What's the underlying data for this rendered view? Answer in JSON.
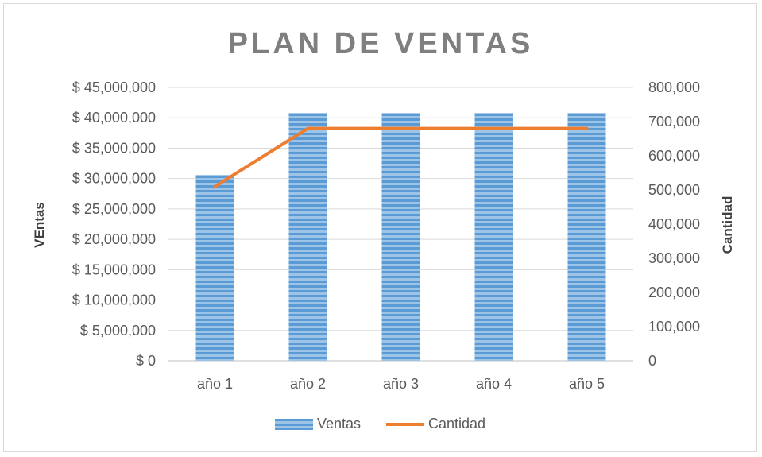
{
  "chart_data": {
    "type": "bar+line",
    "title": "PLAN DE VENTAS",
    "categories": [
      "año 1",
      "año 2",
      "año 3",
      "año 4",
      "año 5"
    ],
    "series": [
      {
        "name": "Ventas",
        "type": "bar",
        "axis": "left",
        "values": [
          30600000,
          40800000,
          40800000,
          40800000,
          40800000
        ],
        "color": "#5b9bd5"
      },
      {
        "name": "Cantidad",
        "type": "line",
        "axis": "right",
        "values": [
          510000,
          680000,
          680000,
          680000,
          680000
        ],
        "color": "#ed7d31"
      }
    ],
    "ylabel_left": "VEntas",
    "ylabel_right": "Cantidad",
    "ylim_left": [
      0,
      45000000
    ],
    "ylim_right": [
      0,
      800000
    ],
    "yticks_left": [
      "$ 45,000,000",
      "$ 40,000,000",
      "$ 35,000,000",
      "$ 30,000,000",
      "$ 25,000,000",
      "$ 20,000,000",
      "$ 15,000,000",
      "$ 10,000,000",
      "$ 5,000,000",
      "$ 0"
    ],
    "yticks_right": [
      "800,000",
      "700,000",
      "600,000",
      "500,000",
      "400,000",
      "300,000",
      "200,000",
      "100,000",
      "0"
    ],
    "grid": true,
    "legend_position": "bottom"
  }
}
